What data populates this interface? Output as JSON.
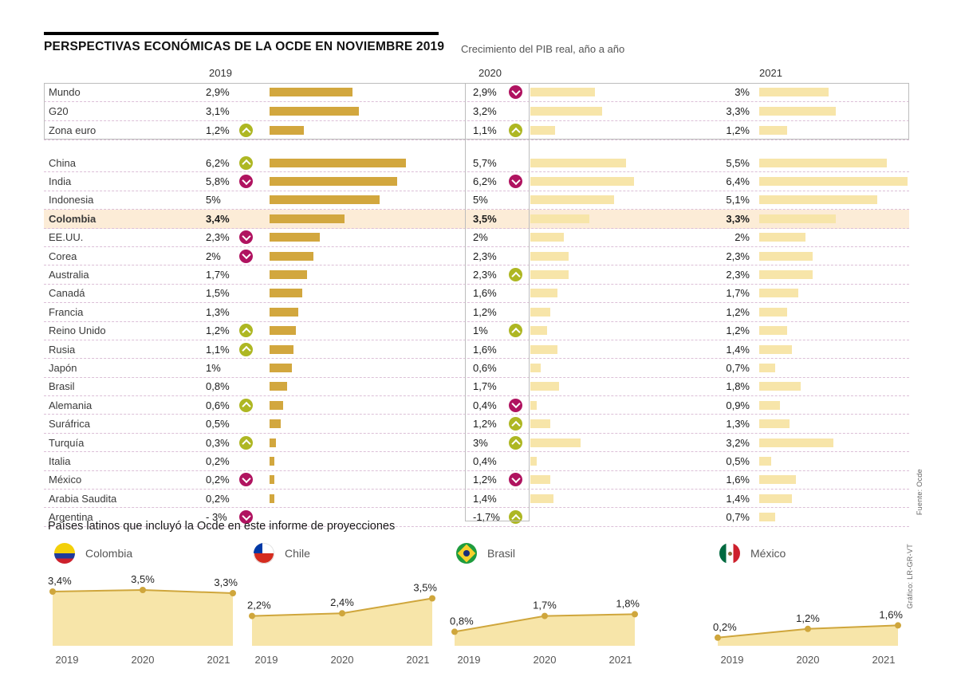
{
  "chart_data": {
    "type": "bar",
    "title": "PERSPECTIVAS ECONÓMICAS DE LA OCDE EN NOVIEMBRE 2019",
    "subtitle": "Crecimiento del PIB real, año a año",
    "columns": [
      "2019",
      "2020",
      "2021"
    ],
    "unit": "% crecimiento PIB real",
    "group1": [
      {
        "label": "Mundo",
        "bold": false,
        "highlight": false,
        "cols": [
          {
            "value": "2,9%",
            "num": 2.9,
            "arrow": null
          },
          {
            "value": "2,9%",
            "num": 2.9,
            "arrow": "down"
          },
          {
            "value": "3%",
            "num": 3.0,
            "arrow": null
          }
        ]
      },
      {
        "label": "G20",
        "bold": false,
        "highlight": false,
        "cols": [
          {
            "value": "3,1%",
            "num": 3.1,
            "arrow": null
          },
          {
            "value": "3,2%",
            "num": 3.2,
            "arrow": null
          },
          {
            "value": "3,3%",
            "num": 3.3,
            "arrow": null
          }
        ]
      },
      {
        "label": "Zona euro",
        "bold": false,
        "highlight": false,
        "cols": [
          {
            "value": "1,2%",
            "num": 1.2,
            "arrow": "up"
          },
          {
            "value": "1,1%",
            "num": 1.1,
            "arrow": "up"
          },
          {
            "value": "1,2%",
            "num": 1.2,
            "arrow": null
          }
        ]
      }
    ],
    "group2": [
      {
        "label": "China",
        "bold": false,
        "highlight": false,
        "cols": [
          {
            "value": "6,2%",
            "num": 6.2,
            "arrow": "up"
          },
          {
            "value": "5,7%",
            "num": 5.7,
            "arrow": null
          },
          {
            "value": "5,5%",
            "num": 5.5,
            "arrow": null
          }
        ]
      },
      {
        "label": "India",
        "bold": false,
        "highlight": false,
        "cols": [
          {
            "value": "5,8%",
            "num": 5.8,
            "arrow": "down"
          },
          {
            "value": "6,2%",
            "num": 6.2,
            "arrow": "down"
          },
          {
            "value": "6,4%",
            "num": 6.4,
            "arrow": null
          }
        ]
      },
      {
        "label": "Indonesia",
        "bold": false,
        "highlight": false,
        "cols": [
          {
            "value": "5%",
            "num": 5.0,
            "arrow": null
          },
          {
            "value": "5%",
            "num": 5.0,
            "arrow": null
          },
          {
            "value": "5,1%",
            "num": 5.1,
            "arrow": null
          }
        ]
      },
      {
        "label": "Colombia",
        "bold": true,
        "highlight": true,
        "cols": [
          {
            "value": "3,4%",
            "num": 3.4,
            "arrow": null
          },
          {
            "value": "3,5%",
            "num": 3.5,
            "arrow": null
          },
          {
            "value": "3,3%",
            "num": 3.3,
            "arrow": null
          }
        ]
      },
      {
        "label": "EE.UU.",
        "bold": false,
        "highlight": false,
        "cols": [
          {
            "value": "2,3%",
            "num": 2.3,
            "arrow": "down"
          },
          {
            "value": "2%",
            "num": 2.0,
            "arrow": null
          },
          {
            "value": "2%",
            "num": 2.0,
            "arrow": null
          }
        ]
      },
      {
        "label": "Corea",
        "bold": false,
        "highlight": false,
        "cols": [
          {
            "value": "2%",
            "num": 2.0,
            "arrow": "down"
          },
          {
            "value": "2,3%",
            "num": 2.3,
            "arrow": null
          },
          {
            "value": "2,3%",
            "num": 2.3,
            "arrow": null
          }
        ]
      },
      {
        "label": "Australia",
        "bold": false,
        "highlight": false,
        "cols": [
          {
            "value": "1,7%",
            "num": 1.7,
            "arrow": null
          },
          {
            "value": "2,3%",
            "num": 2.3,
            "arrow": "up"
          },
          {
            "value": "2,3%",
            "num": 2.3,
            "arrow": null
          }
        ]
      },
      {
        "label": "Canadá",
        "bold": false,
        "highlight": false,
        "cols": [
          {
            "value": "1,5%",
            "num": 1.5,
            "arrow": null
          },
          {
            "value": "1,6%",
            "num": 1.6,
            "arrow": null
          },
          {
            "value": "1,7%",
            "num": 1.7,
            "arrow": null
          }
        ]
      },
      {
        "label": "Francia",
        "bold": false,
        "highlight": false,
        "cols": [
          {
            "value": "1,3%",
            "num": 1.3,
            "arrow": null
          },
          {
            "value": "1,2%",
            "num": 1.2,
            "arrow": null
          },
          {
            "value": "1,2%",
            "num": 1.2,
            "arrow": null
          }
        ]
      },
      {
        "label": "Reino Unido",
        "bold": false,
        "highlight": false,
        "cols": [
          {
            "value": "1,2%",
            "num": 1.2,
            "arrow": "up"
          },
          {
            "value": "1%",
            "num": 1.0,
            "arrow": "up"
          },
          {
            "value": "1,2%",
            "num": 1.2,
            "arrow": null
          }
        ]
      },
      {
        "label": "Rusia",
        "bold": false,
        "highlight": false,
        "cols": [
          {
            "value": "1,1%",
            "num": 1.1,
            "arrow": "up"
          },
          {
            "value": "1,6%",
            "num": 1.6,
            "arrow": null
          },
          {
            "value": "1,4%",
            "num": 1.4,
            "arrow": null
          }
        ]
      },
      {
        "label": "Japón",
        "bold": false,
        "highlight": false,
        "cols": [
          {
            "value": "1%",
            "num": 1.0,
            "arrow": null
          },
          {
            "value": "0,6%",
            "num": 0.6,
            "arrow": null
          },
          {
            "value": "0,7%",
            "num": 0.7,
            "arrow": null
          }
        ]
      },
      {
        "label": "Brasil",
        "bold": false,
        "highlight": false,
        "cols": [
          {
            "value": "0,8%",
            "num": 0.8,
            "arrow": null
          },
          {
            "value": "1,7%",
            "num": 1.7,
            "arrow": null
          },
          {
            "value": "1,8%",
            "num": 1.8,
            "arrow": null
          }
        ]
      },
      {
        "label": "Alemania",
        "bold": false,
        "highlight": false,
        "cols": [
          {
            "value": "0,6%",
            "num": 0.6,
            "arrow": "up"
          },
          {
            "value": "0,4%",
            "num": 0.4,
            "arrow": "down"
          },
          {
            "value": "0,9%",
            "num": 0.9,
            "arrow": null
          }
        ]
      },
      {
        "label": "Suráfrica",
        "bold": false,
        "highlight": false,
        "cols": [
          {
            "value": "0,5%",
            "num": 0.5,
            "arrow": null
          },
          {
            "value": "1,2%",
            "num": 1.2,
            "arrow": "up"
          },
          {
            "value": "1,3%",
            "num": 1.3,
            "arrow": null
          }
        ]
      },
      {
        "label": "Turquía",
        "bold": false,
        "highlight": false,
        "cols": [
          {
            "value": "0,3%",
            "num": 0.3,
            "arrow": "up"
          },
          {
            "value": "3%",
            "num": 3.0,
            "arrow": "up"
          },
          {
            "value": "3,2%",
            "num": 3.2,
            "arrow": null
          }
        ]
      },
      {
        "label": "Italia",
        "bold": false,
        "highlight": false,
        "cols": [
          {
            "value": "0,2%",
            "num": 0.2,
            "arrow": null
          },
          {
            "value": "0,4%",
            "num": 0.4,
            "arrow": null
          },
          {
            "value": "0,5%",
            "num": 0.5,
            "arrow": null
          }
        ]
      },
      {
        "label": "México",
        "bold": false,
        "highlight": false,
        "cols": [
          {
            "value": "0,2%",
            "num": 0.2,
            "arrow": "down"
          },
          {
            "value": "1,2%",
            "num": 1.2,
            "arrow": "down"
          },
          {
            "value": "1,6%",
            "num": 1.6,
            "arrow": null
          }
        ]
      },
      {
        "label": "Arabia Saudita",
        "bold": false,
        "highlight": false,
        "cols": [
          {
            "value": "0,2%",
            "num": 0.2,
            "arrow": null
          },
          {
            "value": "1,4%",
            "num": 1.4,
            "arrow": null
          },
          {
            "value": "1,4%",
            "num": 1.4,
            "arrow": null
          }
        ]
      },
      {
        "label": "Argentina",
        "bold": false,
        "highlight": false,
        "cols": [
          {
            "value": "- 3%",
            "num": -3.0,
            "arrow": "down"
          },
          {
            "value": "-1,7%",
            "num": -1.7,
            "arrow": "up"
          },
          {
            "value": "0,7%",
            "num": 0.7,
            "arrow": null
          }
        ]
      }
    ],
    "mini_charts": {
      "type": "area",
      "section_title": "Países latinos que incluyó la Ocde en este informe de proyecciones",
      "x": [
        "2019",
        "2020",
        "2021"
      ],
      "series": [
        {
          "name": "Colombia",
          "flag": "colombia",
          "values": [
            3.4,
            3.5,
            3.3
          ],
          "labels": [
            "3,4%",
            "3,5%",
            "3,3%"
          ]
        },
        {
          "name": "Chile",
          "flag": "chile",
          "values": [
            2.2,
            2.4,
            3.5
          ],
          "labels": [
            "2,2%",
            "2,4%",
            "3,5%"
          ]
        },
        {
          "name": "Brasil",
          "flag": "brasil",
          "values": [
            0.8,
            1.7,
            1.8
          ],
          "labels": [
            "0,8%",
            "1,7%",
            "1,8%"
          ]
        },
        {
          "name": "México",
          "flag": "mexico",
          "values": [
            0.2,
            1.2,
            1.6
          ],
          "labels": [
            "0,2%",
            "1,2%",
            "1,6%"
          ]
        }
      ]
    },
    "credits": {
      "grafico": "Gráfico: LR-GR-VT",
      "fuente": "Fuente: Ocde"
    },
    "colors": {
      "bar_2019": "#d2a73e",
      "bar_2020_2021": "#f7e5a9",
      "arrow_up": "#aeb723",
      "arrow_down": "#b01360",
      "highlight_row": "#fcecd7"
    }
  }
}
